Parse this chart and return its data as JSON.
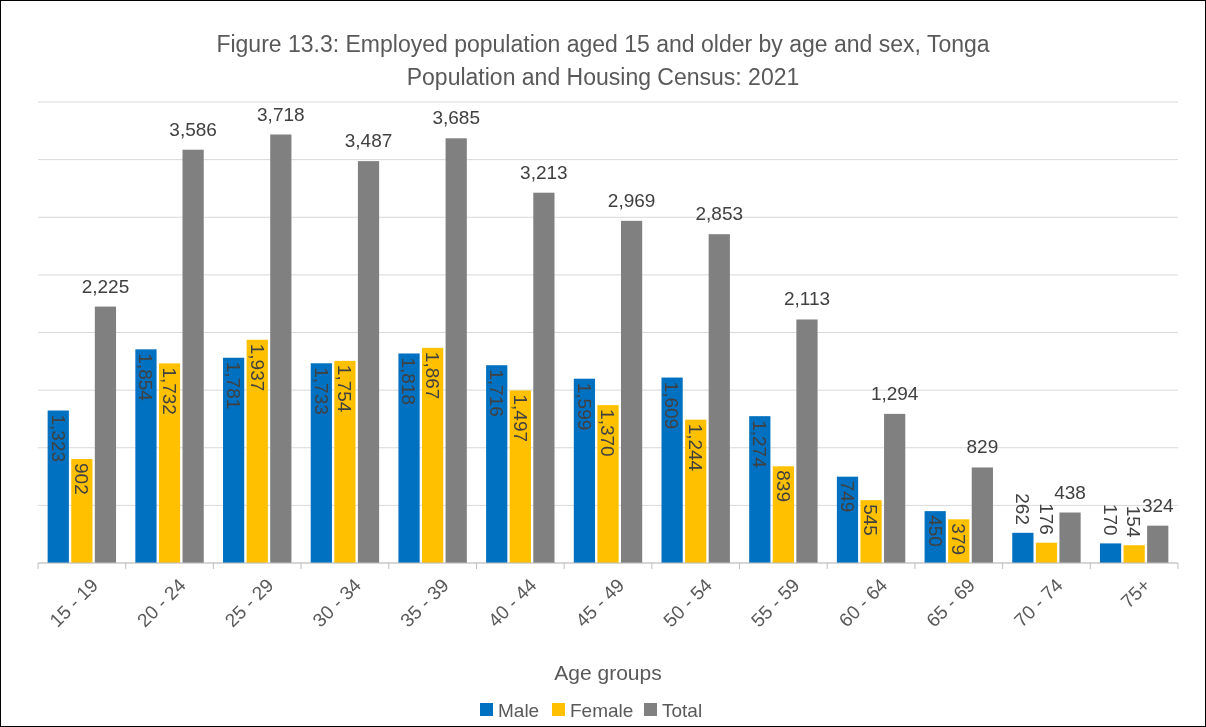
{
  "chart_data": {
    "type": "bar",
    "title": "Figure 13.3: Employed population aged 15 and older by age and sex, Tonga Population and Housing Census: 2021",
    "xlabel": "Age groups",
    "categories": [
      "15 - 19",
      "20 - 24",
      "25 - 29",
      "30 - 34",
      "35 - 39",
      "40 - 44",
      "45 - 49",
      "50 - 54",
      "55 - 59",
      "60 - 64",
      "65 - 69",
      "70 - 74",
      "75+"
    ],
    "series": [
      {
        "name": "Male",
        "color": "#0070c0",
        "values": [
          1323,
          1854,
          1781,
          1733,
          1818,
          1716,
          1599,
          1609,
          1274,
          749,
          450,
          262,
          170
        ],
        "value_labels": [
          "1,323",
          "1,854",
          "1,781",
          "1,733",
          "1,818",
          "1,716",
          "1,599",
          "1,609",
          "1,274",
          "749",
          "450",
          "262",
          "170"
        ]
      },
      {
        "name": "Female",
        "color": "#ffc000",
        "values": [
          902,
          1732,
          1937,
          1754,
          1867,
          1497,
          1370,
          1244,
          839,
          545,
          379,
          176,
          154
        ],
        "value_labels": [
          "902",
          "1,732",
          "1,937",
          "1,754",
          "1,867",
          "1,497",
          "1,370",
          "1,244",
          "839",
          "545",
          "379",
          "176",
          "154"
        ]
      },
      {
        "name": "Total",
        "color": "#808080",
        "values": [
          2225,
          3586,
          3718,
          3487,
          3685,
          3213,
          2969,
          2853,
          2113,
          1294,
          829,
          438,
          324
        ],
        "value_labels": [
          "2,225",
          "3,586",
          "3,718",
          "3,487",
          "3,685",
          "3,213",
          "2,969",
          "2,853",
          "2,113",
          "1,294",
          "829",
          "438",
          "324"
        ]
      }
    ],
    "ylim": [
      0,
      4000
    ],
    "yticks": [
      {
        "value": 0,
        "label": null
      },
      {
        "value": 500,
        "label": null
      },
      {
        "value": 1000,
        "label": null
      },
      {
        "value": 1500,
        "label": null
      },
      {
        "value": 2000,
        "label": null
      },
      {
        "value": 2500,
        "label": null
      },
      {
        "value": 3000,
        "label": null
      },
      {
        "value": 3500,
        "label": null
      },
      {
        "value": 4000,
        "label": null
      }
    ],
    "tick_labels": "x",
    "grid": "y",
    "legend": "bottom"
  }
}
